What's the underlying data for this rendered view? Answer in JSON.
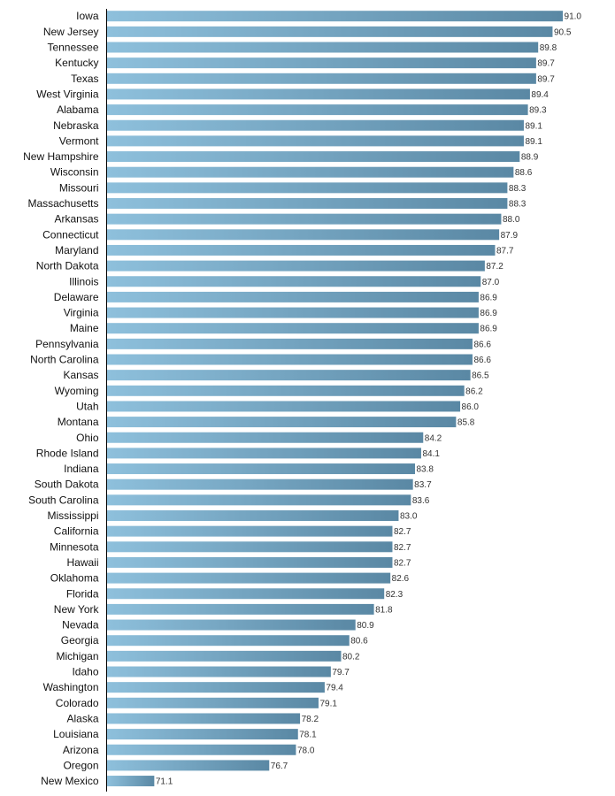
{
  "chart_data": {
    "type": "bar",
    "orientation": "horizontal",
    "title": "",
    "xlabel": "",
    "ylabel": "",
    "xlim": [
      68.8,
      91.0
    ],
    "grid": false,
    "categories": [
      "Iowa",
      "New Jersey",
      "Tennessee",
      "Kentucky",
      "Texas",
      "West Virginia",
      "Alabama",
      "Nebraska",
      "Vermont",
      "New Hampshire",
      "Wisconsin",
      "Missouri",
      "Massachusetts",
      "Arkansas",
      "Connecticut",
      "Maryland",
      "North Dakota",
      "Illinois",
      "Delaware",
      "Virginia",
      "Maine",
      "Pennsylvania",
      "North Carolina",
      "Kansas",
      "Wyoming",
      "Utah",
      "Montana",
      "Ohio",
      "Rhode Island",
      "Indiana",
      "South Dakota",
      "South Carolina",
      "Mississippi",
      "California",
      "Minnesota",
      "Hawaii",
      "Oklahoma",
      "Florida",
      "New York",
      "Nevada",
      "Georgia",
      "Michigan",
      "Idaho",
      "Washington",
      "Colorado",
      "Alaska",
      "Louisiana",
      "Arizona",
      "Oregon",
      "New Mexico"
    ],
    "values": [
      91.0,
      90.5,
      89.8,
      89.7,
      89.7,
      89.4,
      89.3,
      89.1,
      89.1,
      88.9,
      88.6,
      88.3,
      88.3,
      88.0,
      87.9,
      87.7,
      87.2,
      87.0,
      86.9,
      86.9,
      86.9,
      86.6,
      86.6,
      86.5,
      86.2,
      86.0,
      85.8,
      84.2,
      84.1,
      83.8,
      83.7,
      83.6,
      83.0,
      82.7,
      82.7,
      82.7,
      82.6,
      82.3,
      81.8,
      80.9,
      80.6,
      80.2,
      79.7,
      79.4,
      79.1,
      78.2,
      78.1,
      78.0,
      76.7,
      71.1
    ],
    "value_labels": [
      "91.0",
      "90.5",
      "89.8",
      "89.7",
      "89.7",
      "89.4",
      "89.3",
      "89.1",
      "89.1",
      "88.9",
      "88.6",
      "88.3",
      "88.3",
      "88.0",
      "87.9",
      "87.7",
      "87.2",
      "87.0",
      "86.9",
      "86.9",
      "86.9",
      "86.6",
      "86.6",
      "86.5",
      "86.2",
      "86.0",
      "85.8",
      "84.2",
      "84.1",
      "83.8",
      "83.7",
      "83.6",
      "83.0",
      "82.7",
      "82.7",
      "82.7",
      "82.6",
      "82.3",
      "81.8",
      "80.9",
      "80.6",
      "80.2",
      "79.7",
      "79.4",
      "79.1",
      "78.2",
      "78.1",
      "78.0",
      "76.7",
      "71.1"
    ],
    "colors": {
      "bar_start": "#8ec0dc",
      "bar_end": "#5a88a4",
      "axis": "#000000"
    }
  }
}
